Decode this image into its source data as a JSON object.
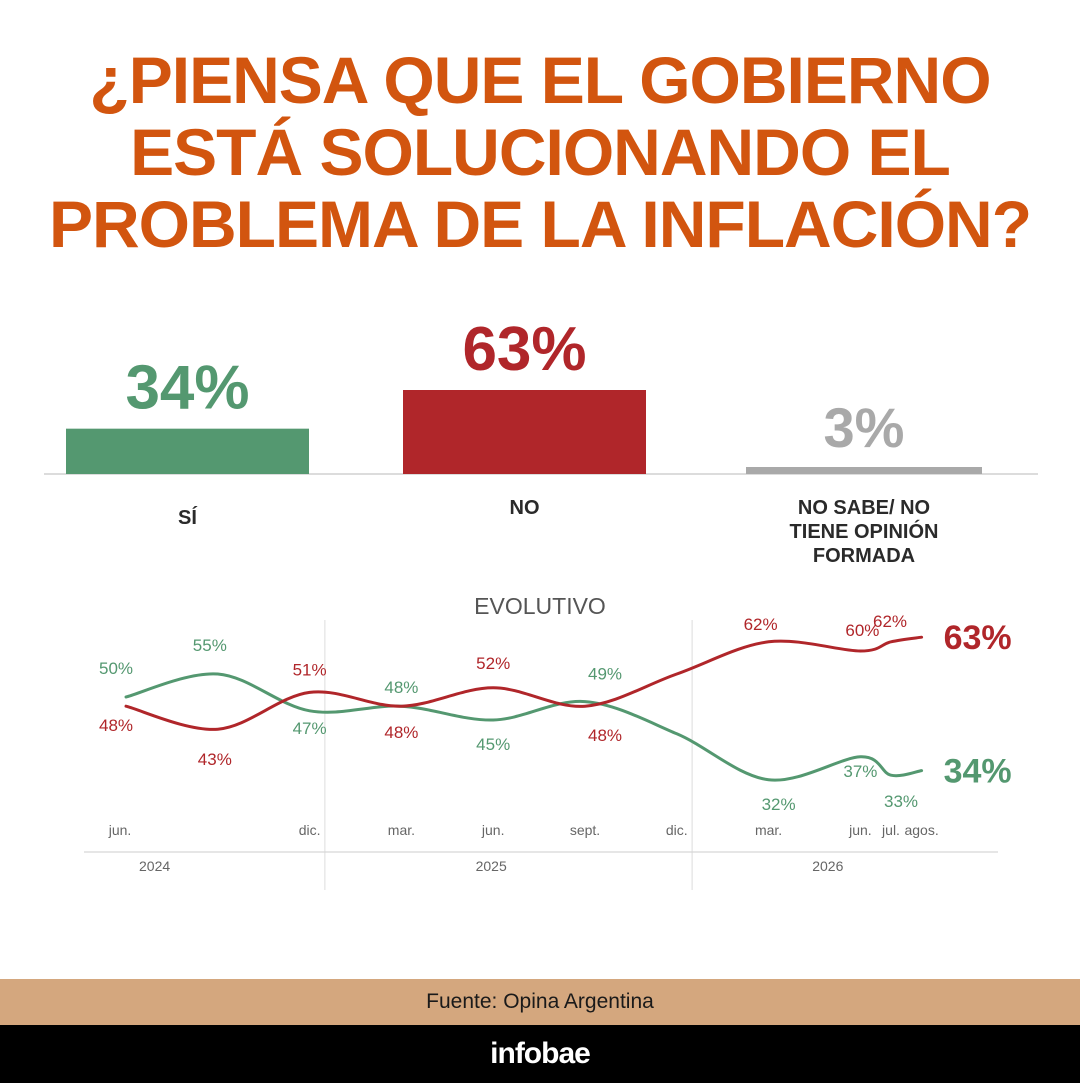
{
  "title": "¿PIENSA QUE EL GOBIERNO ESTÁ SOLUCIONANDO EL PROBLEMA DE LA INFLACIÓN?",
  "colors": {
    "title": "#d2550f",
    "si": "#549870",
    "no": "#b0262a",
    "ns": "#a9a9a9",
    "source_band": "#d4a77e"
  },
  "chart_data": [
    {
      "type": "bar",
      "categories": [
        "SÍ",
        "NO",
        "NO SABE/ NO TIENE OPINIÓN FORMADA"
      ],
      "values": [
        34,
        63,
        3
      ],
      "value_labels": [
        "34%",
        "63%",
        "3%"
      ],
      "colors": [
        "#549870",
        "#b0262a",
        "#a9a9a9"
      ],
      "category_lines": [
        [
          "SÍ"
        ],
        [
          "NO"
        ],
        [
          "NO SABE/ NO",
          "TIENE OPINIÓN",
          "FORMADA"
        ]
      ],
      "ylim": [
        0,
        63
      ]
    },
    {
      "type": "line",
      "title": "EVOLUTIVO",
      "x_labels": [
        "jun.",
        "dic.",
        "mar.",
        "jun.",
        "sept.",
        "dic.",
        "mar.",
        "jun.",
        "jul.",
        "agos."
      ],
      "x_index": [
        0,
        6,
        9,
        12,
        15,
        18,
        21,
        24,
        25,
        26
      ],
      "years": [
        {
          "label": "2024",
          "center": 1
        },
        {
          "label": "2025",
          "center": 12
        },
        {
          "label": "2026",
          "center": 23
        }
      ],
      "year_boundaries": [
        6.5,
        18.5
      ],
      "ylim": [
        25,
        70
      ],
      "series": [
        {
          "name": "SÍ",
          "color": "#549870",
          "x": [
            0,
            3,
            6,
            9,
            12,
            15,
            18,
            21,
            24,
            25,
            26
          ],
          "values": [
            50,
            55,
            47,
            48,
            45,
            49,
            42,
            32,
            37,
            33,
            34
          ],
          "labels": [
            "50%",
            "55%",
            "47%",
            "48%",
            "45%",
            "49%",
            "",
            "32%",
            "37%",
            "33%",
            ""
          ],
          "end_label": "34%"
        },
        {
          "name": "NO",
          "color": "#b0262a",
          "x": [
            0,
            3,
            6,
            9,
            12,
            15,
            18,
            21,
            24,
            25,
            26
          ],
          "values": [
            48,
            43,
            51,
            48,
            52,
            48,
            55,
            62,
            60,
            62,
            63
          ],
          "labels": [
            "48%",
            "43%",
            "51%",
            "48%",
            "52%",
            "48%",
            "",
            "62%",
            "60%",
            "62%",
            ""
          ],
          "end_label": "63%"
        }
      ]
    }
  ],
  "source": "Fuente: Opina Argentina",
  "brand": "infobae"
}
